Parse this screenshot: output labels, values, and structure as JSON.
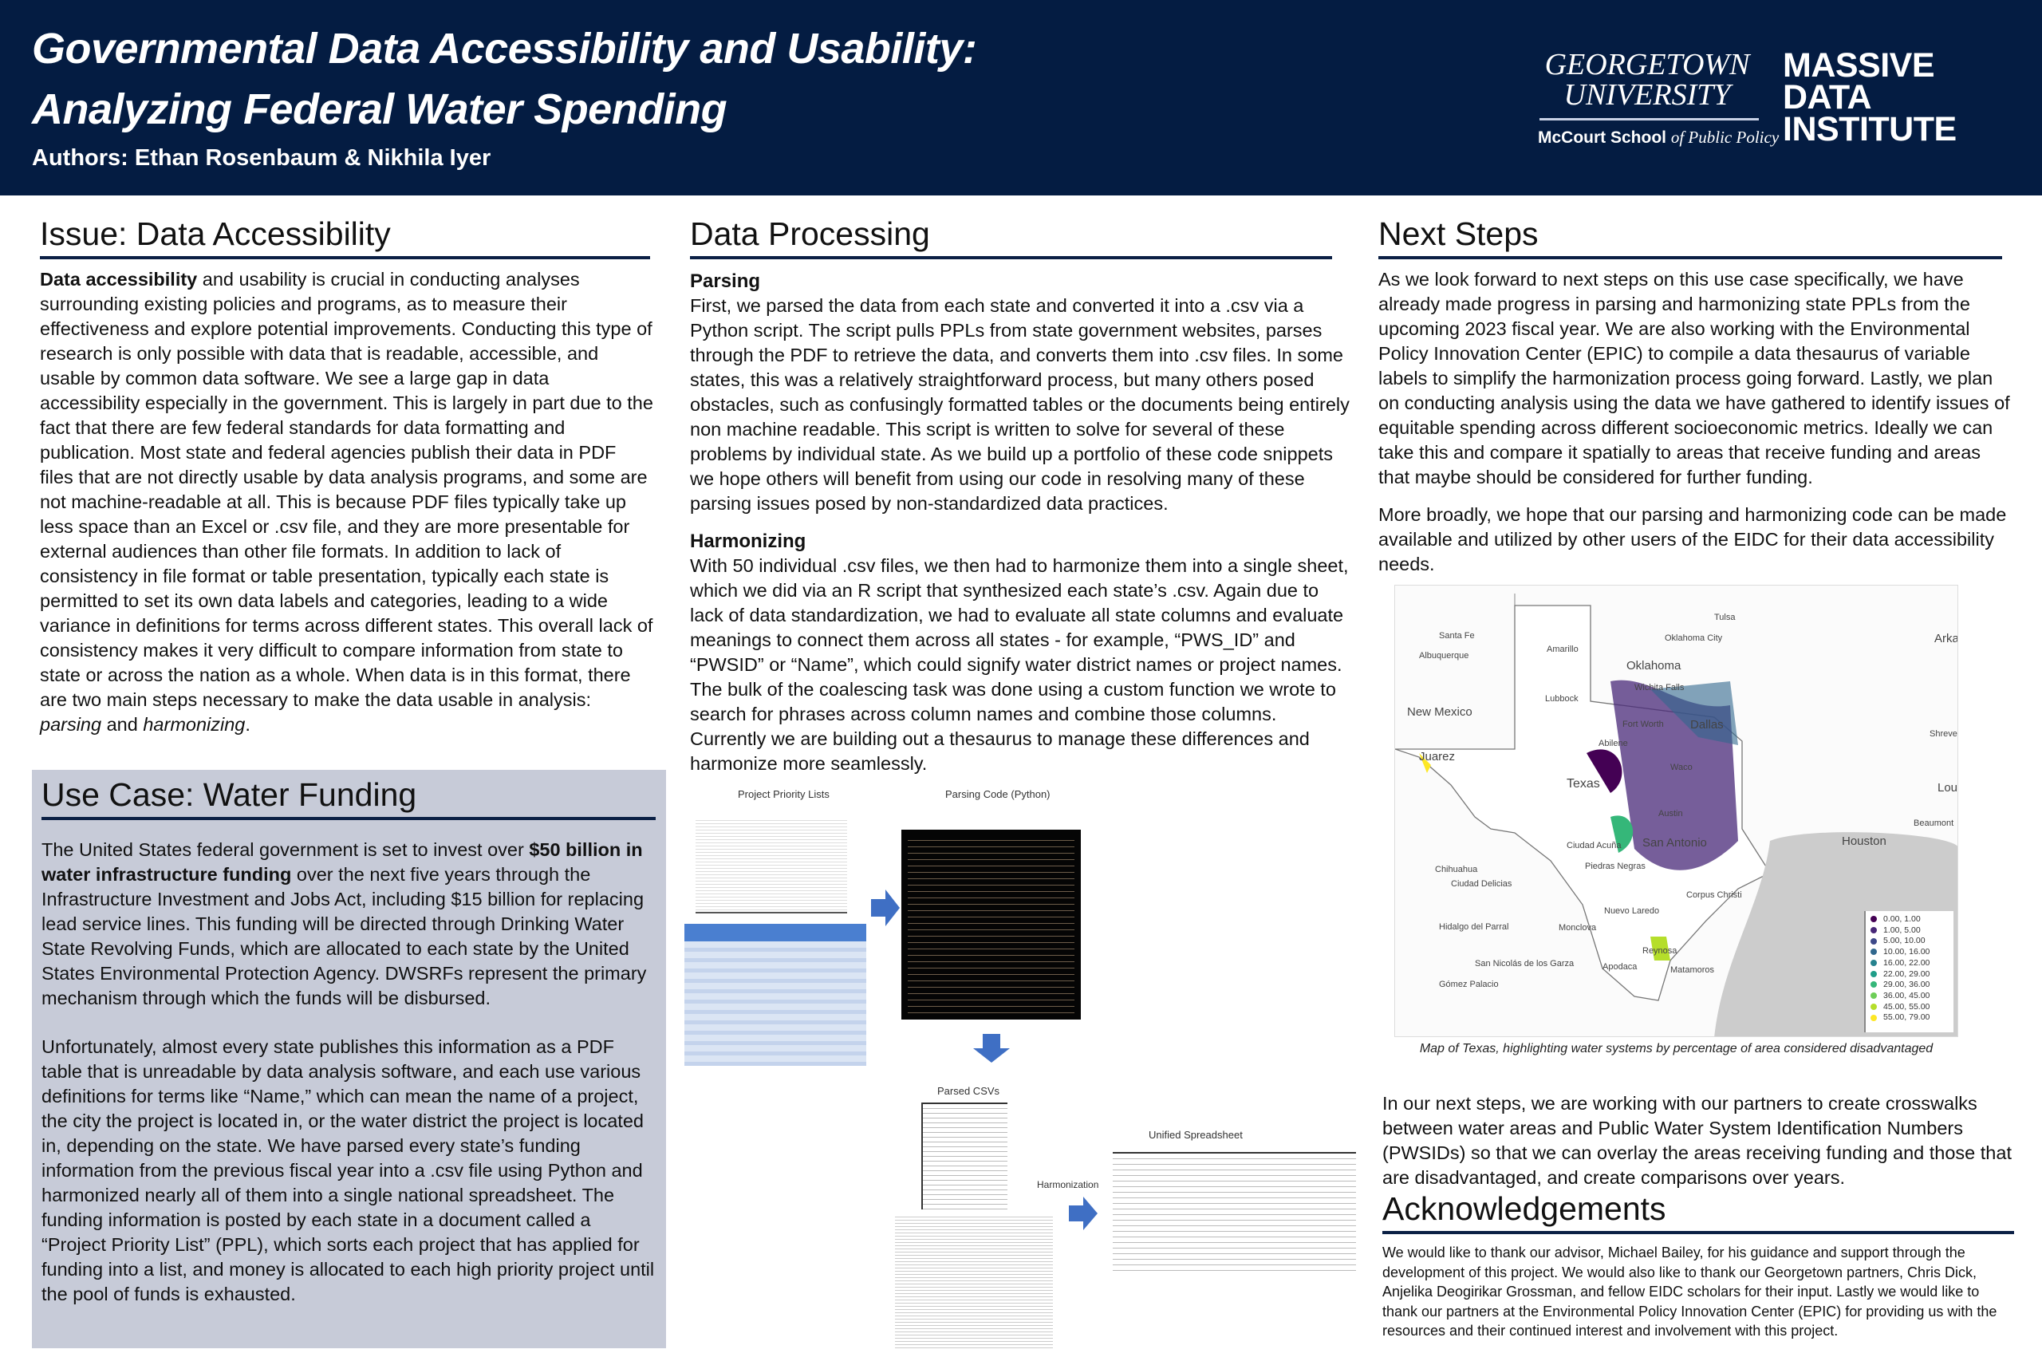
{
  "header": {
    "title_line1": "Governmental Data Accessibility and Usability:",
    "title_line2": "Analyzing Federal Water Spending",
    "authors": "Authors: Ethan Rosenbaum & Nikhila Iyer",
    "logo_gu_line1": "GEORGETOWN",
    "logo_gu_line2": "UNIVERSITY",
    "logo_mccourt": "McCourt School",
    "logo_mccourt_suffix": "of Public Policy",
    "logo_mdi": [
      "MASSIVE",
      "DATA",
      "INSTITUTE"
    ]
  },
  "issue": {
    "heading": "Issue: Data Accessibility",
    "lead_bold": "Data accessibility",
    "text": " and usability is crucial in conducting analyses surrounding existing policies and programs, as to measure their effectiveness and explore potential improvements. Conducting this type of research is only possible with data that is readable, accessible, and usable by common data software. We see a large gap in data accessibility especially in the government. This is largely in part due to the fact that there are few federal standards for data formatting and publication. Most state and federal agencies publish their data in PDF files that are not directly usable by data analysis programs, and some are not machine-readable at all. This is because PDF files typically take up less space than an Excel or .csv file, and they are more presentable for external audiences than other file formats. In addition to lack of consistency in file format or table presentation, typically each state is permitted to set its own data labels and categories, leading to a wide variance in definitions for terms across different states. This overall lack of consistency makes it very difficult to compare information from state to state or across the nation as a whole. When data is in this format, there are two main steps necessary to make the data usable in analysis: ",
    "italic1": "parsing",
    "and": " and ",
    "italic2": "harmonizing",
    "end": "."
  },
  "usecase": {
    "heading": "Use Case: Water Funding",
    "p1_a": "The United States federal government is set to invest over ",
    "p1_bold": "$50 billion in water infrastructure funding",
    "p1_b": " over the next five years through the Infrastructure Investment and Jobs Act, including $15 billion for replacing lead service lines. This funding will be directed through Drinking Water State Revolving Funds, which are allocated to each state by the United States Environmental Protection Agency. DWSRFs represent the primary mechanism through which the funds will be disbursed.",
    "p2": "Unfortunately, almost every state publishes this information as a PDF table that is unreadable by data analysis software, and each use various definitions for terms like “Name,” which can mean the name of a project, the city the project is located in, or the water district the project is located in, depending on the state. We have parsed every state’s funding information from the previous fiscal year into a .csv file using Python and harmonized nearly all of them into a single national spreadsheet. The funding information is posted by each state in a document called a “Project Priority List” (PPL), which sorts each project that has applied for funding into a list, and money is allocated to each high priority project until the pool of funds is exhausted."
  },
  "processing": {
    "heading": "Data Processing",
    "parsing_title": "Parsing",
    "parsing_text": "First, we parsed the data from each state and converted it into a .csv via a Python script. The script pulls PPLs from state government websites, parses through the PDF to retrieve the data, and converts them into .csv files. In some states, this was a relatively straightforward process, but many others posed obstacles, such as confusingly formatted tables or the documents being entirely non machine readable. This script is written to solve for several of these problems by individual state. As we build up a portfolio of these code snippets we hope others will benefit from using our code in resolving many of these parsing issues posed by non-standardized data practices.",
    "harmonizing_title": "Harmonizing",
    "harmonizing_text": "With 50 individual .csv files, we then had to harmonize them into a single sheet, which we did via an R script that synthesized each state’s .csv. Again due to lack of data standardization, we had to evaluate all state columns and evaluate meanings to connect them across all states - for example, “PWS_ID” and “PWSID” or “Name”, which could signify water district names or project names. The bulk of the coalescing task was done using a custom function we wrote to search for phrases across column names and combine those columns. Currently we are building out a thesaurus to manage these differences and harmonize more seamlessly.",
    "diagram": {
      "ppl_label": "Project Priority Lists",
      "code_label": "Parsing Code (Python)",
      "csv_label": "Parsed CSVs",
      "harmonization_label": "Harmonization",
      "unified_label": "Unified Spreadsheet",
      "arrow_color": "#3f6fc4"
    }
  },
  "next_steps": {
    "heading": "Next Steps",
    "p1": "As we look forward to next steps on this use case specifically, we have already made progress in parsing and harmonizing state PPLs from the upcoming 2023 fiscal year. We are also working with the Environmental Policy Innovation Center (EPIC) to compile a data thesaurus of variable labels to simplify the harmonization process going forward. Lastly, we plan on conducting analysis using the data we have gathered to identify issues of equitable spending across different socioeconomic metrics. Ideally we can take this and compare it spatially to areas that receive funding and areas that maybe should be considered for further funding.",
    "p2": "More broadly, we hope that our parsing and harmonizing code can be made available and utilized by other users of the EIDC for their data accessibility needs.",
    "map_caption": "Map of Texas, highlighting water systems by percentage of area considered disadvantaged",
    "p3": "In our next steps, we are working with our partners to create crosswalks between water areas and Public Water System Identification Numbers (PWSIDs) so that we can overlay the areas receiving funding and those that are disadvantaged, and create comparisons over years."
  },
  "map": {
    "regions": [
      "New Mexico",
      "Oklahoma",
      "Texas",
      "Arka",
      "Lou"
    ],
    "cities": [
      "Santa Fe",
      "Albuquerque",
      "Amarillo",
      "Tulsa",
      "Oklahoma City",
      "Lubbock",
      "Wichita Falls",
      "Fort Worth",
      "Dallas",
      "Abilene",
      "Shreve",
      "Juarez",
      "Waco",
      "Austin",
      "Beaumont",
      "San Antonio",
      "Houston",
      "Ciudad Acuña",
      "Piedras Negras",
      "Chihuahua",
      "Ciudad Delicias",
      "Corpus Christi",
      "Nuevo Laredo",
      "Hidalgo del Parral",
      "Monclova",
      "Reynosa",
      "San Nicolás de los Garza",
      "Apodaca",
      "Matamoros",
      "Gómez Palacio"
    ],
    "legend": [
      {
        "label": "0.00,  1.00",
        "color": "#440154"
      },
      {
        "label": "1.00,  5.00",
        "color": "#482878"
      },
      {
        "label": "5.00, 10.00",
        "color": "#3e4989"
      },
      {
        "label": "10.00, 16.00",
        "color": "#31688e"
      },
      {
        "label": "16.00, 22.00",
        "color": "#26828e"
      },
      {
        "label": "22.00, 29.00",
        "color": "#1f9e89"
      },
      {
        "label": "29.00, 36.00",
        "color": "#35b779"
      },
      {
        "label": "36.00, 45.00",
        "color": "#6ece58"
      },
      {
        "label": "45.00, 55.00",
        "color": "#b5de2b"
      },
      {
        "label": "55.00, 79.00",
        "color": "#fde725"
      }
    ]
  },
  "acknowledgements": {
    "heading": "Acknowledgements",
    "text": "We would like to thank our advisor, Michael Bailey, for his guidance and support through the development of this project. We would also like to thank our Georgetown partners, Chris Dick, Anjelika Deogirikar Grossman, and fellow EIDC scholars for their input.  Lastly we would like to thank our partners at the Environmental Policy Innovation Center (EPIC) for providing us with the resources and their continued interest and involvement with this project."
  },
  "colors": {
    "header_bg": "#041c42",
    "usecase_bg": "#c7cbd8",
    "rule": "#0b2045"
  }
}
